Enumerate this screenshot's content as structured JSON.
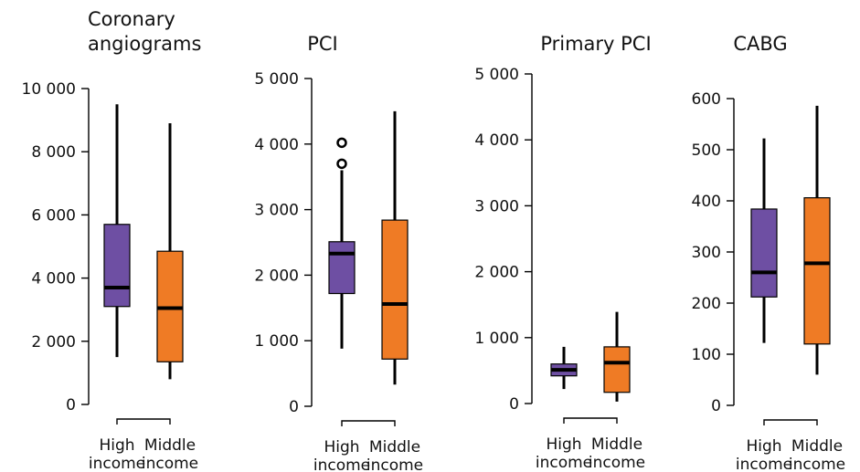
{
  "chart_data": [
    {
      "type": "box",
      "title": "Coronary angiograms",
      "title_lines": [
        "Coronary",
        "angiograms"
      ],
      "ylim": [
        0,
        10000
      ],
      "yticks": [
        0,
        2000,
        4000,
        6000,
        8000,
        10000
      ],
      "ytick_labels": [
        "0",
        "2 000",
        "4 000",
        "6 000",
        "8 000",
        "10 000"
      ],
      "categories": [
        "High income",
        "Middle income"
      ],
      "category_lines": [
        [
          "High",
          "income"
        ],
        [
          "Middle",
          "income"
        ]
      ],
      "series": [
        {
          "category": "High income",
          "min": 1500,
          "q1": 3100,
          "median": 3700,
          "q3": 5700,
          "max": 9500,
          "outliers": []
        },
        {
          "category": "Middle income",
          "min": 800,
          "q1": 1350,
          "median": 3050,
          "q3": 4850,
          "max": 8900,
          "outliers": []
        }
      ]
    },
    {
      "type": "box",
      "title": "PCI",
      "title_lines": [
        "PCI"
      ],
      "ylim": [
        0,
        5000
      ],
      "yticks": [
        0,
        1000,
        2000,
        3000,
        4000,
        5000
      ],
      "ytick_labels": [
        "0",
        "1 000",
        "2 000",
        "3 000",
        "4 000",
        "5 000"
      ],
      "categories": [
        "High income",
        "Middle income"
      ],
      "category_lines": [
        [
          "High",
          "income"
        ],
        [
          "Middle",
          "income"
        ]
      ],
      "series": [
        {
          "category": "High income",
          "min": 880,
          "q1": 1720,
          "median": 2330,
          "q3": 2510,
          "max": 3600,
          "outliers": [
            3700,
            4020
          ]
        },
        {
          "category": "Middle income",
          "min": 330,
          "q1": 720,
          "median": 1560,
          "q3": 2840,
          "max": 4500,
          "outliers": []
        }
      ]
    },
    {
      "type": "box",
      "title": "Primary PCI",
      "title_lines": [
        "Primary PCI"
      ],
      "ylim": [
        0,
        5000
      ],
      "yticks": [
        0,
        1000,
        2000,
        3000,
        4000,
        5000
      ],
      "ytick_labels": [
        "0",
        "1 000",
        "2 000",
        "3 000",
        "4 000",
        "5 000"
      ],
      "categories": [
        "High income",
        "Middle income"
      ],
      "category_lines": [
        [
          "High",
          "income"
        ],
        [
          "Middle",
          "income"
        ]
      ],
      "series": [
        {
          "category": "High income",
          "min": 220,
          "q1": 420,
          "median": 510,
          "q3": 600,
          "max": 860,
          "outliers": []
        },
        {
          "category": "Middle income",
          "min": 30,
          "q1": 170,
          "median": 620,
          "q3": 860,
          "max": 1390,
          "outliers": []
        }
      ]
    },
    {
      "type": "box",
      "title": "CABG",
      "title_lines": [
        "CABG"
      ],
      "ylim": [
        0,
        600
      ],
      "yticks": [
        0,
        100,
        200,
        300,
        400,
        500,
        600
      ],
      "ytick_labels": [
        "0",
        "100",
        "200",
        "300",
        "400",
        "500",
        "600"
      ],
      "categories": [
        "High income",
        "Middle income"
      ],
      "category_lines": [
        [
          "High",
          "income"
        ],
        [
          "Middle",
          "income"
        ]
      ],
      "series": [
        {
          "category": "High income",
          "min": 122,
          "q1": 212,
          "median": 260,
          "q3": 384,
          "max": 522,
          "outliers": []
        },
        {
          "category": "Middle income",
          "min": 60,
          "q1": 120,
          "median": 278,
          "q3": 406,
          "max": 586,
          "outliers": []
        }
      ]
    }
  ],
  "colors": {
    "high_income_box": "#6e4fa3",
    "middle_income_box": "#ef7b25",
    "line": "#000000",
    "text": "#111111",
    "background": "#ffffff"
  }
}
